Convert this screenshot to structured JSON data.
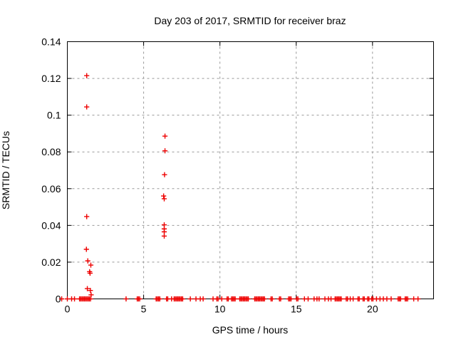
{
  "title": "Day 203 of 2017, SRMTID for receiver braz",
  "chart_data": {
    "type": "scatter",
    "title": "Day 203 of 2017, SRMTID for receiver braz",
    "xlabel": "GPS time / hours",
    "ylabel": "SRMTID / TECUs",
    "xlim": [
      0,
      24
    ],
    "ylim": [
      0,
      0.14
    ],
    "xticks": [
      0,
      5,
      10,
      15,
      20
    ],
    "xtick_labels": [
      "0",
      "5",
      "10",
      "15",
      "20"
    ],
    "yticks": [
      0,
      0.02,
      0.04,
      0.06,
      0.08,
      0.1,
      0.12,
      0.14
    ],
    "ytick_labels": [
      "0",
      "0.02",
      "0.04",
      "0.06",
      "0.08",
      "0.1",
      "0.12",
      "0.14"
    ],
    "grid": true,
    "legend": "none",
    "marker": "plus",
    "marker_color": "#ee0000",
    "grid_color": "#999999",
    "frame_color": "#000000",
    "points": [
      [
        1.27,
        0.1215
      ],
      [
        1.27,
        0.1045
      ],
      [
        1.27,
        0.0448
      ],
      [
        1.25,
        0.027
      ],
      [
        1.34,
        0.0207
      ],
      [
        1.54,
        0.0184
      ],
      [
        1.46,
        0.0148
      ],
      [
        1.49,
        0.014
      ],
      [
        1.31,
        0.0056
      ],
      [
        1.51,
        0.0046
      ],
      [
        1.56,
        0.0022
      ],
      [
        6.4,
        0.0886
      ],
      [
        6.4,
        0.0806
      ],
      [
        6.37,
        0.0676
      ],
      [
        6.31,
        0.056
      ],
      [
        6.35,
        0.0545
      ],
      [
        6.35,
        0.0403
      ],
      [
        6.35,
        0.0381
      ],
      [
        6.35,
        0.0365
      ],
      [
        6.35,
        0.0342
      ]
    ],
    "zero_value_runs_hours": [
      [
        -0.37,
        -0.37
      ],
      [
        0.0,
        0.0
      ],
      [
        0.28,
        0.28
      ],
      [
        0.47,
        0.47
      ],
      [
        0.8,
        1.58
      ],
      [
        3.85,
        3.85
      ],
      [
        4.58,
        4.78
      ],
      [
        5.82,
        6.1
      ],
      [
        6.5,
        6.6
      ],
      [
        6.83,
        6.83
      ],
      [
        7.0,
        7.56
      ],
      [
        8.06,
        8.06
      ],
      [
        8.43,
        8.43
      ],
      [
        8.71,
        8.71
      ],
      [
        8.9,
        8.9
      ],
      [
        9.55,
        9.55
      ],
      [
        9.8,
        9.92
      ],
      [
        10.12,
        10.12
      ],
      [
        10.47,
        10.58
      ],
      [
        10.76,
        11.0
      ],
      [
        11.3,
        11.88
      ],
      [
        12.28,
        12.96
      ],
      [
        13.35,
        13.5
      ],
      [
        13.9,
        14.0
      ],
      [
        14.5,
        14.7
      ],
      [
        15.03,
        15.15
      ],
      [
        15.54,
        15.54
      ],
      [
        15.78,
        15.78
      ],
      [
        16.17,
        16.17
      ],
      [
        16.36,
        16.36
      ],
      [
        16.5,
        16.5
      ],
      [
        16.88,
        16.88
      ],
      [
        17.11,
        17.11
      ],
      [
        17.28,
        17.28
      ],
      [
        17.55,
        17.95
      ],
      [
        18.28,
        18.42
      ],
      [
        18.54,
        18.54
      ],
      [
        18.73,
        18.73
      ],
      [
        19.05,
        19.17
      ],
      [
        19.38,
        19.5
      ],
      [
        19.68,
        19.82
      ],
      [
        19.95,
        20.1
      ],
      [
        20.26,
        20.26
      ],
      [
        20.49,
        20.49
      ],
      [
        20.71,
        20.71
      ],
      [
        20.94,
        20.94
      ],
      [
        21.22,
        21.22
      ],
      [
        21.68,
        21.85
      ],
      [
        22.14,
        22.37
      ],
      [
        22.7,
        22.7
      ],
      [
        22.98,
        22.98
      ]
    ]
  }
}
